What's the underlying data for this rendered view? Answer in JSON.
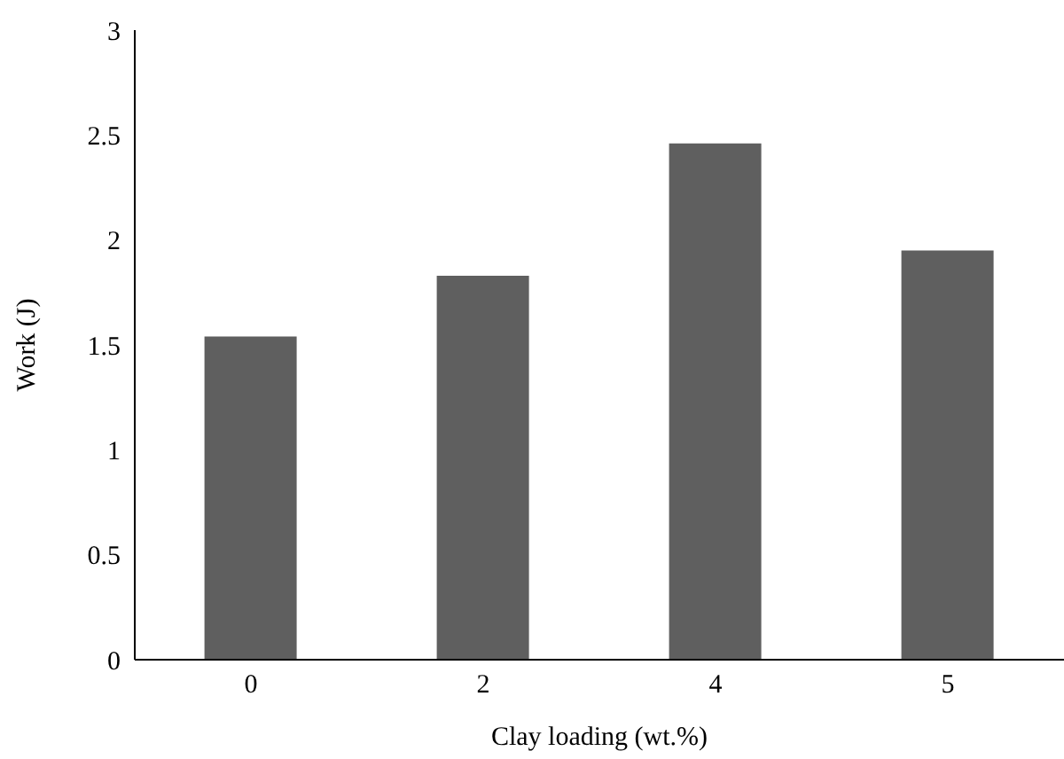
{
  "chart_data": {
    "type": "bar",
    "xlabel": "Clay loading (wt.%)",
    "ylabel": "Work (J)",
    "categories": [
      "0",
      "2",
      "4",
      "5"
    ],
    "values": [
      1.54,
      1.83,
      2.46,
      1.95
    ],
    "color": "#5f5f5f",
    "ylim": [
      0,
      3
    ],
    "yticks": [
      0,
      0.5,
      1,
      1.5,
      2,
      2.5,
      3
    ],
    "grid": false
  }
}
